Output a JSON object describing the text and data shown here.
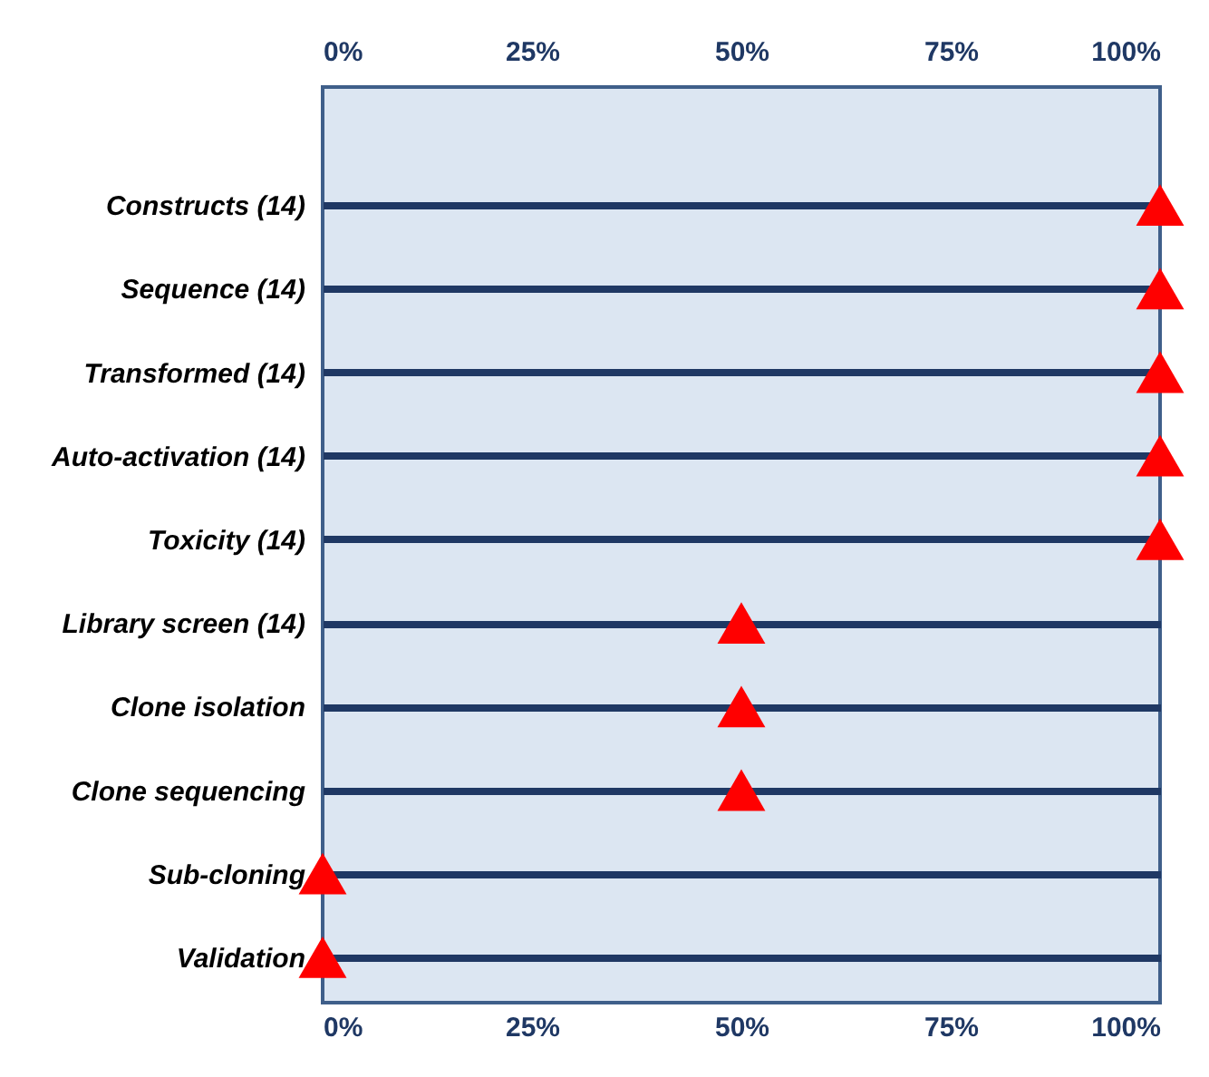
{
  "chart_data": {
    "type": "scatter",
    "orientation": "horizontal",
    "marker": "triangle",
    "grid": "y",
    "legend": false,
    "categories": [
      "Constructs (14)",
      "Sequence (14)",
      "Transformed (14)",
      "Auto-activation (14)",
      "Toxicity (14)",
      "Library screen (14)",
      "Clone isolation",
      "Clone sequencing",
      "Sub-cloning",
      "Validation"
    ],
    "series": [
      {
        "color": "#ff0000",
        "values": [
          100,
          100,
          100,
          100,
          100,
          50,
          50,
          50,
          0,
          0
        ]
      }
    ],
    "xlim": [
      0,
      100
    ],
    "xticks": [
      {
        "value": 0,
        "label": "0%"
      },
      {
        "value": 25,
        "label": "25%"
      },
      {
        "value": 50,
        "label": "50%"
      },
      {
        "value": 75,
        "label": "75%"
      },
      {
        "value": 100,
        "label": "100%"
      }
    ],
    "x2lim": [
      0,
      100
    ],
    "x2ticks": [
      {
        "value": 0,
        "label": "0%"
      },
      {
        "value": 25,
        "label": "25%"
      },
      {
        "value": 50,
        "label": "50%"
      },
      {
        "value": 75,
        "label": "75%"
      },
      {
        "value": 100,
        "label": "100%"
      }
    ]
  }
}
